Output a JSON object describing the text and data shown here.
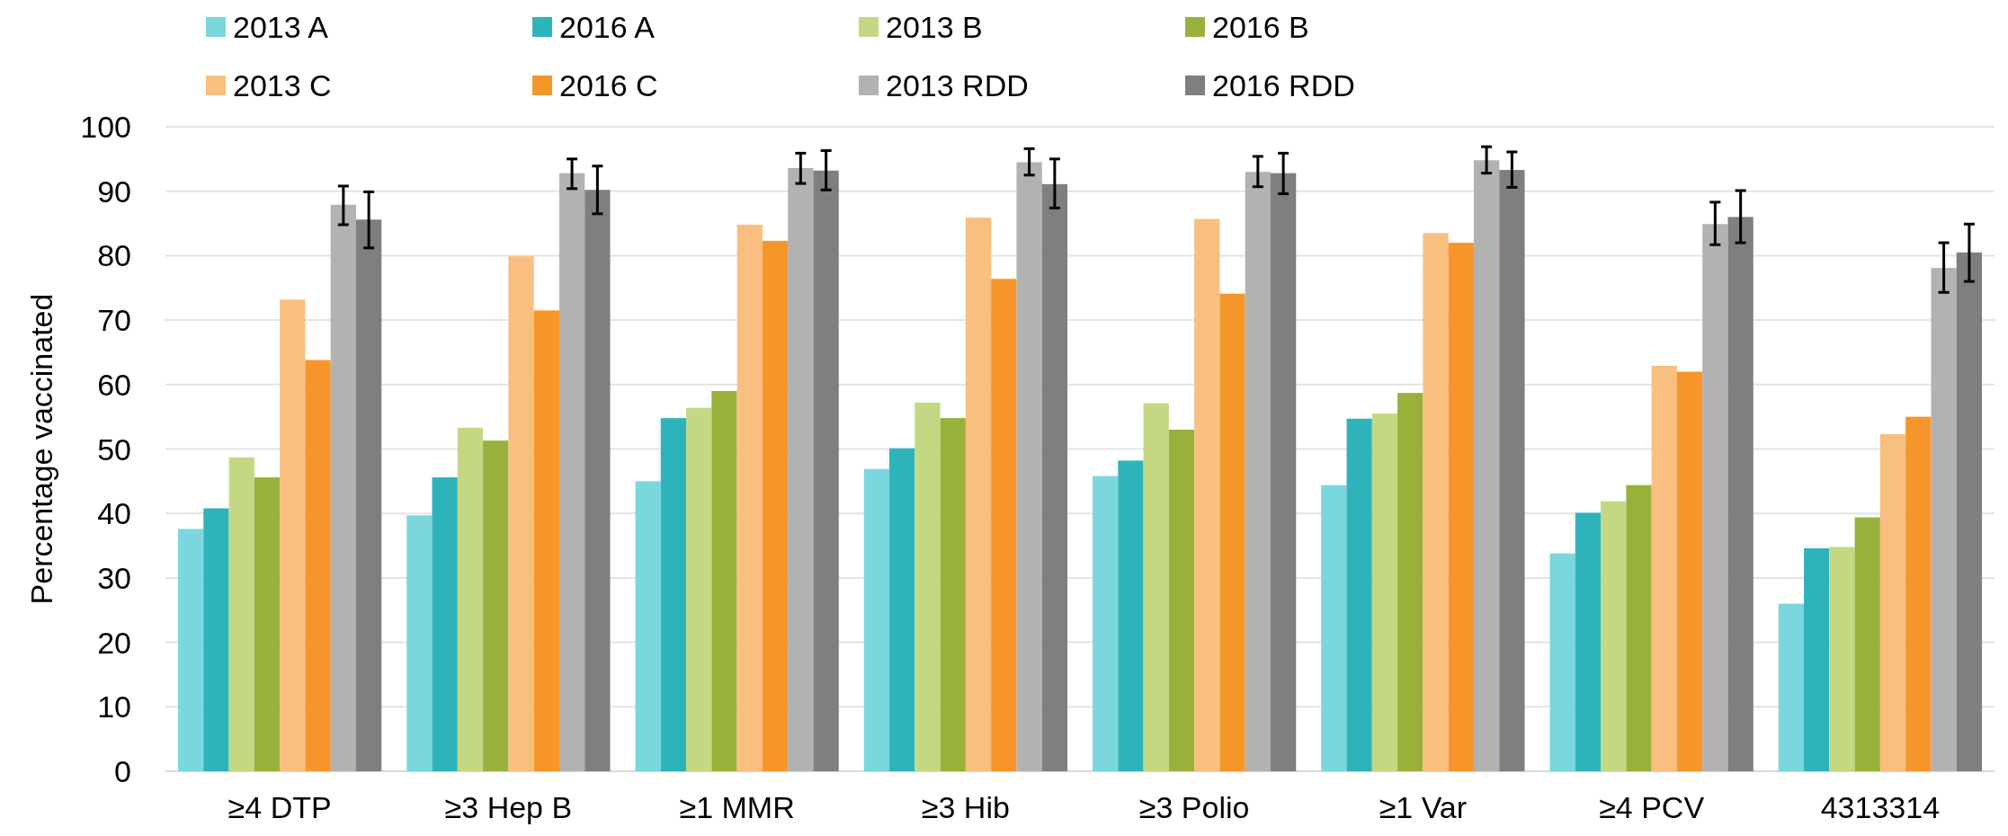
{
  "chart_data": {
    "type": "bar",
    "ylabel": "Percentage vaccinated",
    "categories": [
      "≥4 DTP",
      "≥3 Hep B",
      "≥1 MMR",
      "≥3 Hib",
      "≥3 Polio",
      "≥1 Var",
      "≥4 PCV",
      "4313314"
    ],
    "ylim": [
      0,
      100
    ],
    "yticks": [
      0,
      10,
      20,
      30,
      40,
      50,
      60,
      70,
      80,
      90,
      100
    ],
    "grid": "y",
    "legend": "top",
    "series": [
      {
        "name": "2013 A",
        "color": "#7bd7de",
        "values": [
          37.6,
          39.7,
          45.0,
          46.9,
          45.8,
          44.4,
          33.8,
          26.0
        ]
      },
      {
        "name": "2016 A",
        "color": "#2fb3bb",
        "values": [
          40.8,
          45.6,
          54.8,
          50.1,
          48.2,
          54.7,
          40.1,
          34.6
        ]
      },
      {
        "name": "2013 B",
        "color": "#c4d884",
        "values": [
          48.7,
          53.3,
          56.4,
          57.2,
          57.1,
          55.5,
          41.9,
          34.8
        ]
      },
      {
        "name": "2016 B",
        "color": "#99b13b",
        "values": [
          45.6,
          51.3,
          59.0,
          54.8,
          53.0,
          58.7,
          44.4,
          39.4
        ]
      },
      {
        "name": "2013 C",
        "color": "#f9bf7f",
        "values": [
          73.2,
          79.9,
          84.8,
          85.9,
          85.7,
          83.5,
          62.9,
          52.3
        ]
      },
      {
        "name": "2016 C",
        "color": "#f6962a",
        "values": [
          63.8,
          71.5,
          82.3,
          76.4,
          74.1,
          82.0,
          62.0,
          55.0
        ]
      },
      {
        "name": "2013 RDD",
        "color": "#b2b2b2",
        "values": [
          87.9,
          92.8,
          93.6,
          94.5,
          93.0,
          94.8,
          84.9,
          78.1
        ],
        "errors": [
          [
            84.8,
            90.8
          ],
          [
            90.4,
            95.0
          ],
          [
            91.2,
            95.9
          ],
          [
            92.5,
            96.6
          ],
          [
            90.7,
            95.4
          ],
          [
            92.8,
            96.9
          ],
          [
            81.7,
            88.3
          ],
          [
            74.3,
            82.0
          ]
        ]
      },
      {
        "name": "2016 RDD",
        "color": "#7f7f7f",
        "values": [
          85.6,
          90.2,
          93.2,
          91.1,
          92.8,
          93.3,
          86.0,
          80.5
        ],
        "errors": [
          [
            81.2,
            89.9
          ],
          [
            86.5,
            93.9
          ],
          [
            90.2,
            96.3
          ],
          [
            87.4,
            95.0
          ],
          [
            89.6,
            95.9
          ],
          [
            90.6,
            96.1
          ],
          [
            82.0,
            90.1
          ],
          [
            76.0,
            84.9
          ]
        ]
      }
    ]
  }
}
